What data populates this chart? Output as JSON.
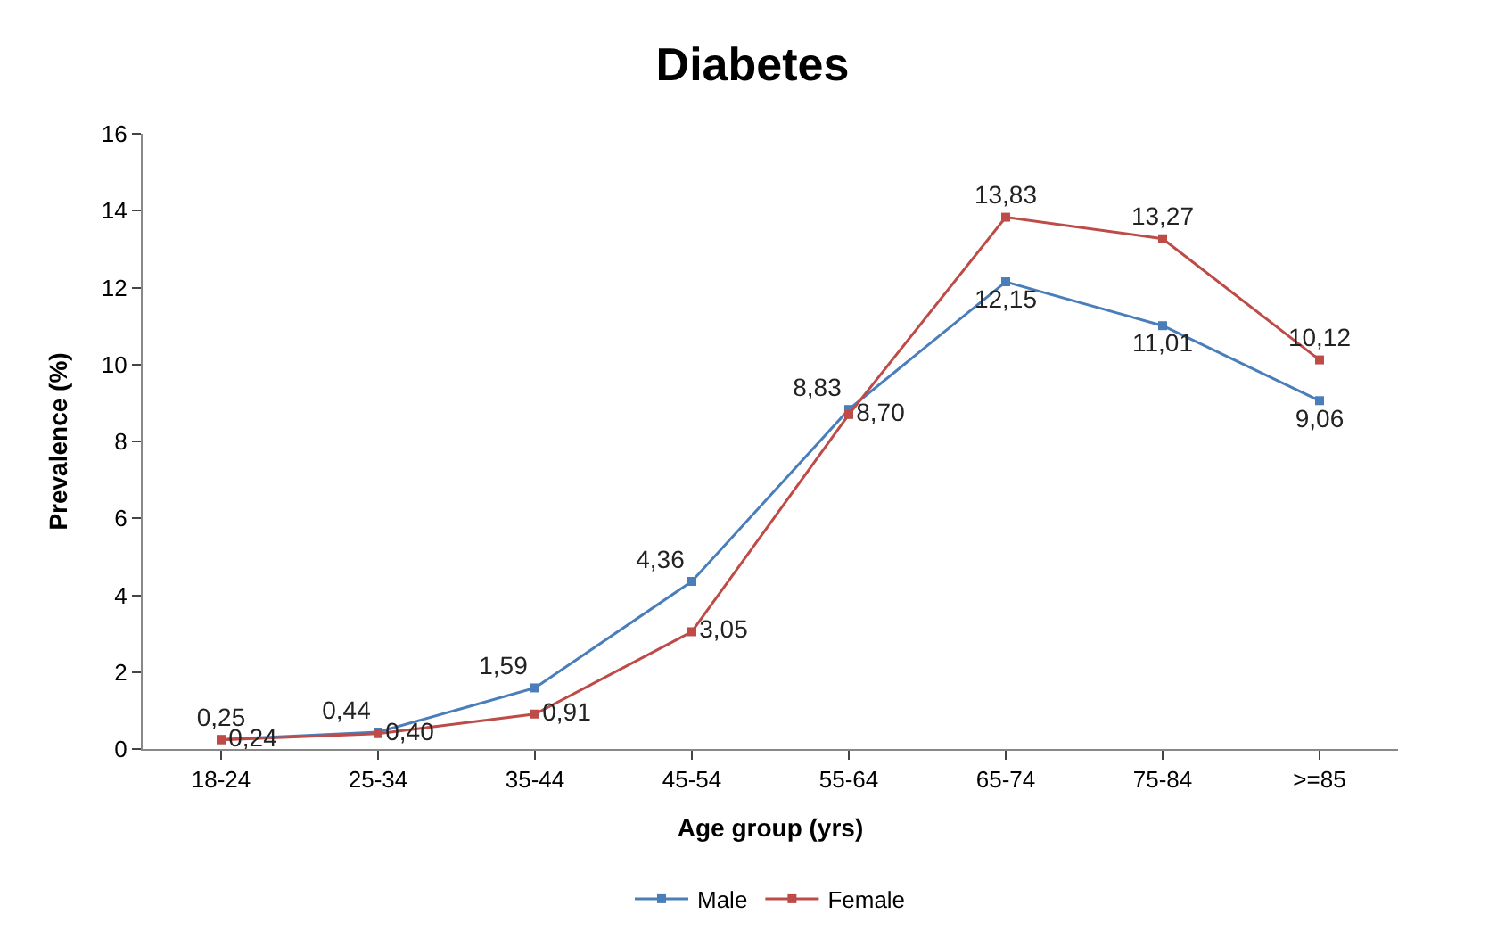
{
  "chart_data": {
    "type": "line",
    "title": "Diabetes",
    "xlabel": "Age group (yrs)",
    "ylabel": "Prevalence (%)",
    "categories": [
      "18-24",
      "25-34",
      "35-44",
      "45-54",
      "55-64",
      "65-74",
      "75-84",
      ">=85"
    ],
    "series": [
      {
        "name": "Male",
        "color": "#4a7ebb",
        "values": [
          0.25,
          0.44,
          1.59,
          4.36,
          8.83,
          12.15,
          11.01,
          9.06
        ],
        "value_labels": [
          "0,25",
          "0,44",
          "1,59",
          "4,36",
          "8,83",
          "12,15",
          "11,01",
          "9,06"
        ]
      },
      {
        "name": "Female",
        "color": "#be4b48",
        "values": [
          0.24,
          0.4,
          0.91,
          3.05,
          8.7,
          13.83,
          13.27,
          10.12
        ],
        "value_labels": [
          "0,24",
          "0,40",
          "0,91",
          "3,05",
          "8,70",
          "13,83",
          "13,27",
          "10,12"
        ]
      }
    ],
    "ylim": [
      0,
      16
    ],
    "yticks": [
      0,
      2,
      4,
      6,
      8,
      10,
      12,
      14,
      16
    ],
    "legend": "bottom",
    "marker": "square",
    "line_style": "solid"
  }
}
